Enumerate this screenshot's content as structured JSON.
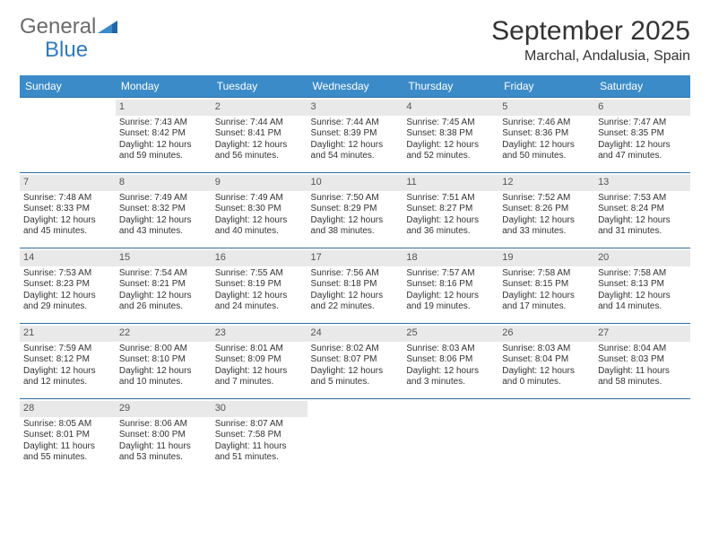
{
  "logo": {
    "text1": "General",
    "text2": "Blue"
  },
  "title": "September 2025",
  "location": "Marchal, Andalusia, Spain",
  "colors": {
    "header_bg": "#3b8bc9",
    "header_text": "#ffffff",
    "row_border": "#2f6fa3",
    "daynum_bg": "#e9e9e9",
    "logo_gray": "#6b6b6b",
    "logo_blue": "#2f7bbf"
  },
  "day_headers": [
    "Sunday",
    "Monday",
    "Tuesday",
    "Wednesday",
    "Thursday",
    "Friday",
    "Saturday"
  ],
  "weeks": [
    [
      null,
      {
        "n": "1",
        "sunrise": "7:43 AM",
        "sunset": "8:42 PM",
        "daylight": "12 hours and 59 minutes."
      },
      {
        "n": "2",
        "sunrise": "7:44 AM",
        "sunset": "8:41 PM",
        "daylight": "12 hours and 56 minutes."
      },
      {
        "n": "3",
        "sunrise": "7:44 AM",
        "sunset": "8:39 PM",
        "daylight": "12 hours and 54 minutes."
      },
      {
        "n": "4",
        "sunrise": "7:45 AM",
        "sunset": "8:38 PM",
        "daylight": "12 hours and 52 minutes."
      },
      {
        "n": "5",
        "sunrise": "7:46 AM",
        "sunset": "8:36 PM",
        "daylight": "12 hours and 50 minutes."
      },
      {
        "n": "6",
        "sunrise": "7:47 AM",
        "sunset": "8:35 PM",
        "daylight": "12 hours and 47 minutes."
      }
    ],
    [
      {
        "n": "7",
        "sunrise": "7:48 AM",
        "sunset": "8:33 PM",
        "daylight": "12 hours and 45 minutes."
      },
      {
        "n": "8",
        "sunrise": "7:49 AM",
        "sunset": "8:32 PM",
        "daylight": "12 hours and 43 minutes."
      },
      {
        "n": "9",
        "sunrise": "7:49 AM",
        "sunset": "8:30 PM",
        "daylight": "12 hours and 40 minutes."
      },
      {
        "n": "10",
        "sunrise": "7:50 AM",
        "sunset": "8:29 PM",
        "daylight": "12 hours and 38 minutes."
      },
      {
        "n": "11",
        "sunrise": "7:51 AM",
        "sunset": "8:27 PM",
        "daylight": "12 hours and 36 minutes."
      },
      {
        "n": "12",
        "sunrise": "7:52 AM",
        "sunset": "8:26 PM",
        "daylight": "12 hours and 33 minutes."
      },
      {
        "n": "13",
        "sunrise": "7:53 AM",
        "sunset": "8:24 PM",
        "daylight": "12 hours and 31 minutes."
      }
    ],
    [
      {
        "n": "14",
        "sunrise": "7:53 AM",
        "sunset": "8:23 PM",
        "daylight": "12 hours and 29 minutes."
      },
      {
        "n": "15",
        "sunrise": "7:54 AM",
        "sunset": "8:21 PM",
        "daylight": "12 hours and 26 minutes."
      },
      {
        "n": "16",
        "sunrise": "7:55 AM",
        "sunset": "8:19 PM",
        "daylight": "12 hours and 24 minutes."
      },
      {
        "n": "17",
        "sunrise": "7:56 AM",
        "sunset": "8:18 PM",
        "daylight": "12 hours and 22 minutes."
      },
      {
        "n": "18",
        "sunrise": "7:57 AM",
        "sunset": "8:16 PM",
        "daylight": "12 hours and 19 minutes."
      },
      {
        "n": "19",
        "sunrise": "7:58 AM",
        "sunset": "8:15 PM",
        "daylight": "12 hours and 17 minutes."
      },
      {
        "n": "20",
        "sunrise": "7:58 AM",
        "sunset": "8:13 PM",
        "daylight": "12 hours and 14 minutes."
      }
    ],
    [
      {
        "n": "21",
        "sunrise": "7:59 AM",
        "sunset": "8:12 PM",
        "daylight": "12 hours and 12 minutes."
      },
      {
        "n": "22",
        "sunrise": "8:00 AM",
        "sunset": "8:10 PM",
        "daylight": "12 hours and 10 minutes."
      },
      {
        "n": "23",
        "sunrise": "8:01 AM",
        "sunset": "8:09 PM",
        "daylight": "12 hours and 7 minutes."
      },
      {
        "n": "24",
        "sunrise": "8:02 AM",
        "sunset": "8:07 PM",
        "daylight": "12 hours and 5 minutes."
      },
      {
        "n": "25",
        "sunrise": "8:03 AM",
        "sunset": "8:06 PM",
        "daylight": "12 hours and 3 minutes."
      },
      {
        "n": "26",
        "sunrise": "8:03 AM",
        "sunset": "8:04 PM",
        "daylight": "12 hours and 0 minutes."
      },
      {
        "n": "27",
        "sunrise": "8:04 AM",
        "sunset": "8:03 PM",
        "daylight": "11 hours and 58 minutes."
      }
    ],
    [
      {
        "n": "28",
        "sunrise": "8:05 AM",
        "sunset": "8:01 PM",
        "daylight": "11 hours and 55 minutes."
      },
      {
        "n": "29",
        "sunrise": "8:06 AM",
        "sunset": "8:00 PM",
        "daylight": "11 hours and 53 minutes."
      },
      {
        "n": "30",
        "sunrise": "8:07 AM",
        "sunset": "7:58 PM",
        "daylight": "11 hours and 51 minutes."
      },
      null,
      null,
      null,
      null
    ]
  ],
  "labels": {
    "sunrise": "Sunrise: ",
    "sunset": "Sunset: ",
    "daylight": "Daylight: "
  }
}
